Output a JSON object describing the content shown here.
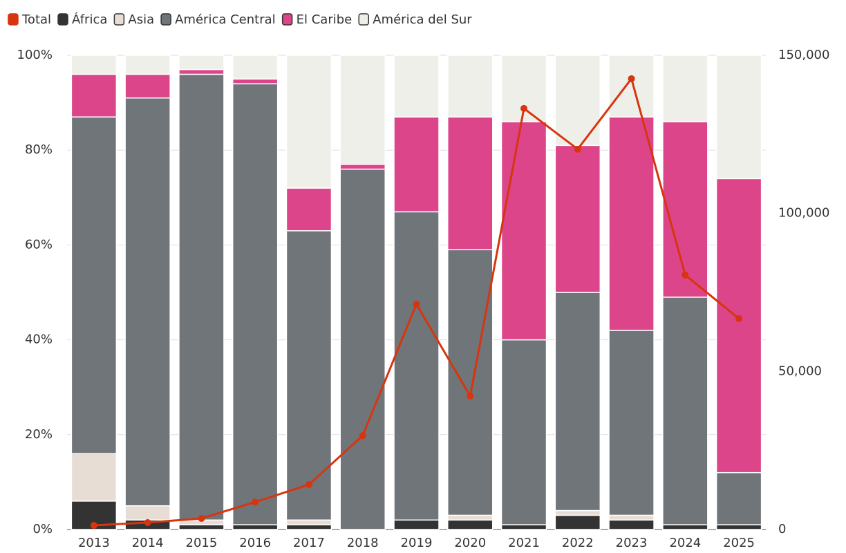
{
  "chart_data": {
    "type": "bar",
    "stacked": true,
    "categories": [
      "2013",
      "2014",
      "2015",
      "2016",
      "2017",
      "2018",
      "2019",
      "2020",
      "2021",
      "2022",
      "2023",
      "2024",
      "2025"
    ],
    "series": [
      {
        "name": "Total",
        "color": "#d7350f",
        "type": "line",
        "axis": "y2",
        "values": [
          1300,
          2200,
          3500,
          8700,
          14200,
          29700,
          71300,
          42200,
          133200,
          120300,
          142600,
          80500,
          66700
        ]
      },
      {
        "name": "África",
        "color": "#333333",
        "values": [
          6,
          2,
          1,
          1,
          1,
          0,
          2,
          2,
          1,
          3,
          2,
          1,
          1
        ]
      },
      {
        "name": "Asia",
        "color": "#e8ddd5",
        "values": [
          10,
          3,
          1,
          0,
          1,
          0,
          0,
          1,
          0,
          1,
          1,
          0,
          0
        ]
      },
      {
        "name": "América Central",
        "color": "#70757a",
        "values": [
          71,
          86,
          94,
          93,
          61,
          76,
          65,
          56,
          39,
          46,
          39,
          48,
          11
        ]
      },
      {
        "name": "El Caribe",
        "color": "#dc4589",
        "values": [
          9,
          5,
          1,
          1,
          9,
          1,
          20,
          28,
          46,
          31,
          45,
          37,
          62
        ]
      },
      {
        "name": "América del Sur",
        "color": "#efefea",
        "values": [
          4,
          4,
          3,
          5,
          28,
          23,
          13,
          13,
          14,
          19,
          13,
          14,
          26
        ]
      }
    ],
    "ylim": [
      0,
      100
    ],
    "yticks": [
      {
        "value": 0,
        "label": "0%"
      },
      {
        "value": 20,
        "label": "20%"
      },
      {
        "value": 40,
        "label": "40%"
      },
      {
        "value": 60,
        "label": "60%"
      },
      {
        "value": 80,
        "label": "80%"
      },
      {
        "value": 100,
        "label": "100%"
      }
    ],
    "y2lim": [
      0,
      150000
    ],
    "y2ticks": [
      0,
      {
        "value": 50000,
        "label": "50,000"
      },
      {
        "value": 100000,
        "label": "100,000"
      },
      {
        "value": 150000,
        "label": "150,000"
      }
    ],
    "grid": true,
    "legend": "top"
  }
}
